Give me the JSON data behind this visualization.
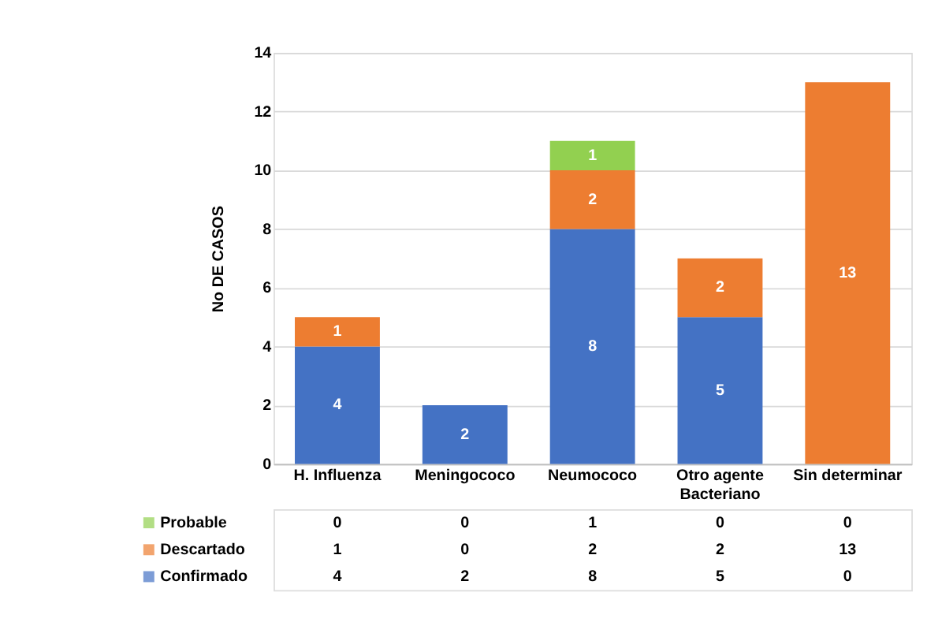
{
  "chart_data": {
    "type": "bar",
    "stacked": true,
    "ylabel": "No DE CASOS",
    "categories": [
      "H. Influenza",
      "Meningococo",
      "Neumococo",
      "Otro agente Bacteriano",
      "Sin determinar"
    ],
    "series": [
      {
        "name": "Confirmado",
        "color": "#4472c4",
        "values": [
          4,
          2,
          8,
          5,
          0
        ],
        "value_labels": [
          "4",
          "2",
          "8",
          "5",
          "0"
        ]
      },
      {
        "name": "Descartado",
        "color": "#ed7d31",
        "values": [
          1,
          0,
          2,
          2,
          13
        ],
        "value_labels": [
          "1",
          "0",
          "2",
          "2",
          "13"
        ]
      },
      {
        "name": "Probable",
        "color": "#92d050",
        "values": [
          0,
          0,
          1,
          0,
          0
        ],
        "value_labels": [
          "0",
          "0",
          "1",
          "0",
          "0"
        ]
      }
    ],
    "ylim": [
      0,
      14
    ],
    "yticks": [
      0,
      2,
      4,
      6,
      8,
      10,
      12,
      14
    ],
    "grid": "y",
    "legend": "bottom"
  }
}
